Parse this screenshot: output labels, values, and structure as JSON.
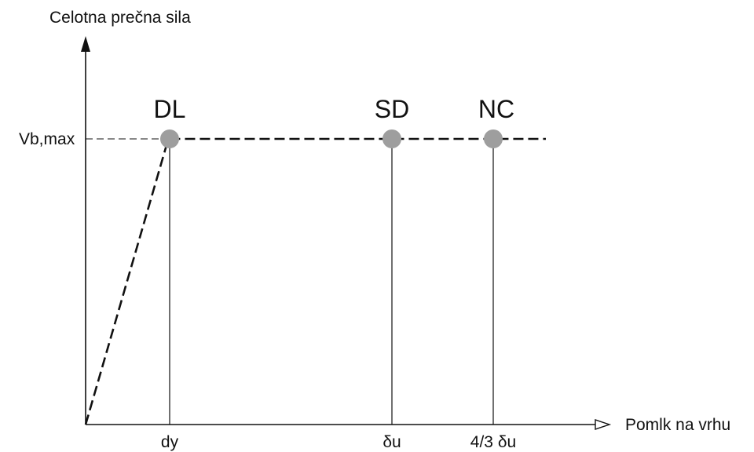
{
  "y_axis_label": "Celotna prečna sila",
  "x_axis_label": "Pomlk na vrhu",
  "y_tick_label": "Vb,max",
  "points": [
    {
      "id": "dl",
      "label": "DL",
      "x_label": "dy"
    },
    {
      "id": "sd",
      "label": "SD",
      "x_label": "δu"
    },
    {
      "id": "nc",
      "label": "NC",
      "x_label": "4/3 δu"
    }
  ],
  "colors": {
    "line": "#111111",
    "marker": "#9e9e9e"
  }
}
